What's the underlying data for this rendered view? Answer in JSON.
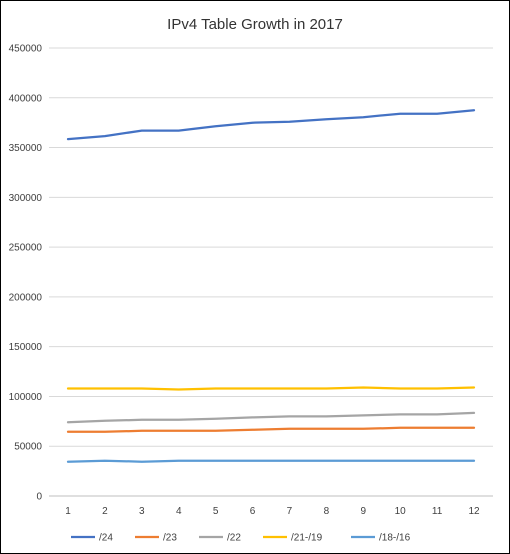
{
  "chart_data": {
    "type": "line",
    "title": "IPv4 Table Growth in 2017",
    "x": [
      1,
      2,
      3,
      4,
      5,
      6,
      7,
      8,
      9,
      10,
      11,
      12
    ],
    "ylim": [
      0,
      450000
    ],
    "yticks": [
      0,
      50000,
      100000,
      150000,
      200000,
      250000,
      300000,
      350000,
      400000,
      450000
    ],
    "grid": true,
    "legend_position": "bottom",
    "series": [
      {
        "name": "/24",
        "color": "#4472C4",
        "values": [
          358500,
          361500,
          367000,
          367000,
          371500,
          375000,
          376000,
          378500,
          380500,
          384000,
          384000,
          387500
        ]
      },
      {
        "name": "/23",
        "color": "#ED7D31",
        "values": [
          64500,
          64500,
          65500,
          65500,
          65500,
          66500,
          67500,
          67500,
          67500,
          68500,
          68500,
          68500
        ]
      },
      {
        "name": "/22",
        "color": "#A5A5A5",
        "values": [
          74000,
          75500,
          76500,
          76500,
          77500,
          79000,
          80000,
          80000,
          81000,
          82000,
          82000,
          83500
        ]
      },
      {
        "name": "/21-/19",
        "color": "#FFC000",
        "values": [
          108000,
          108000,
          108000,
          107000,
          108000,
          108000,
          108000,
          108000,
          109000,
          108000,
          108000,
          109000
        ]
      },
      {
        "name": "/18-/16",
        "color": "#5B9BD5",
        "values": [
          34500,
          35500,
          34500,
          35500,
          35500,
          35500,
          35500,
          35500,
          35500,
          35500,
          35500,
          35500
        ]
      }
    ]
  }
}
